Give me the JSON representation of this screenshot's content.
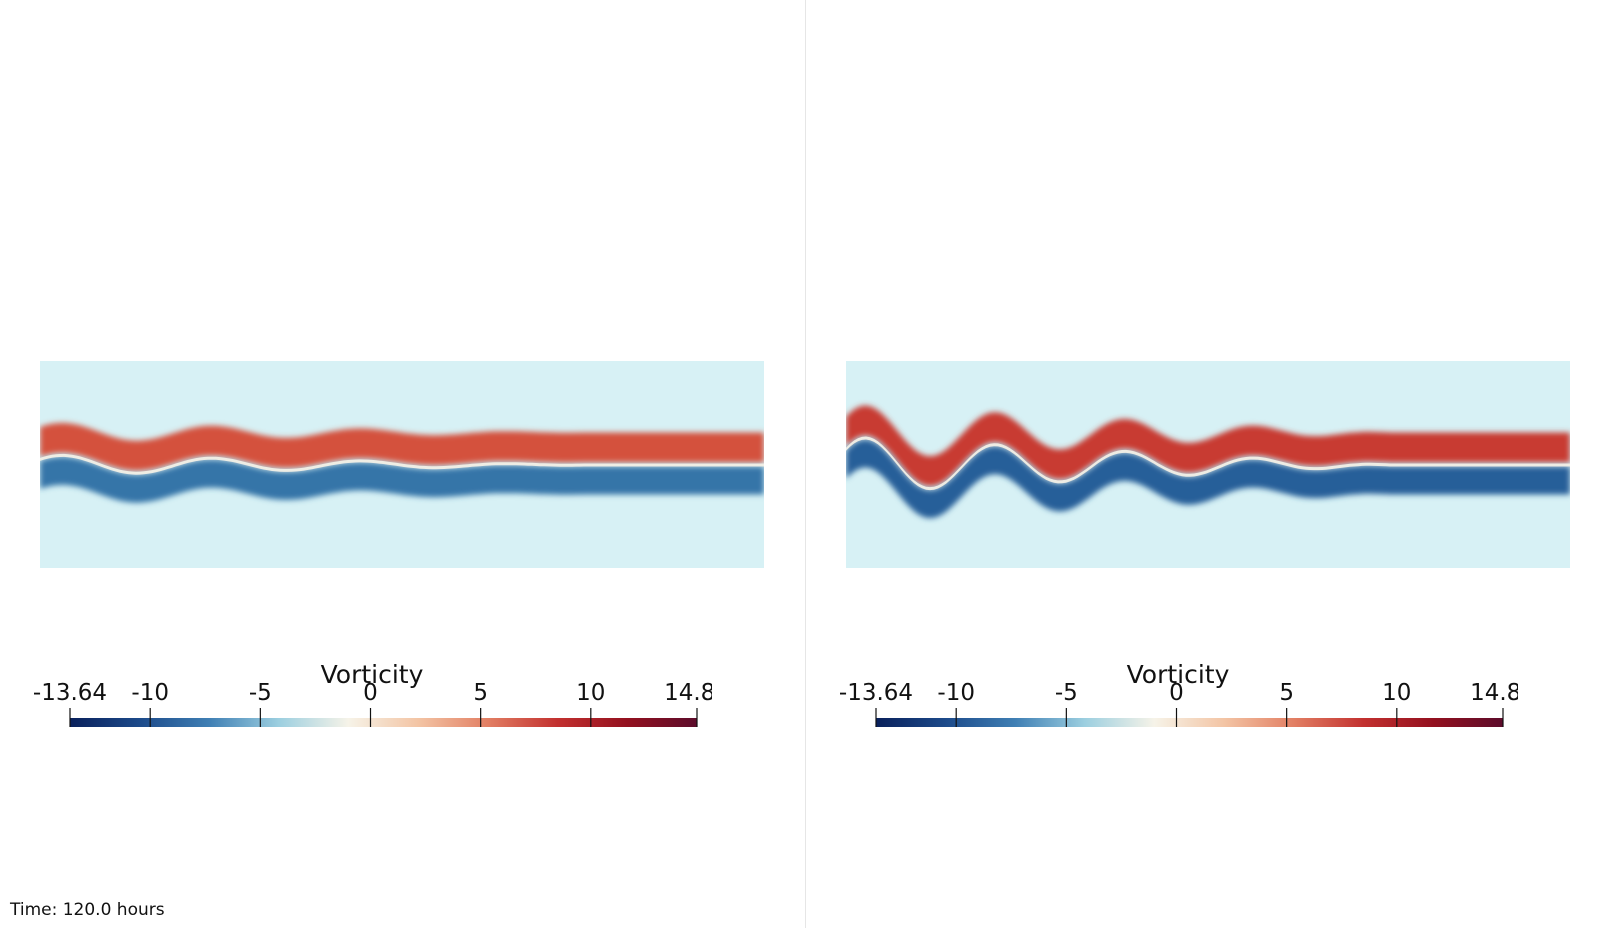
{
  "views": [
    {
      "id": "left",
      "colorbar": {
        "title": "Vorticity",
        "min": -13.64,
        "max": 14.82,
        "ticks": [
          "-13.64",
          "-10",
          "-5",
          "0",
          "5",
          "10",
          "14.82"
        ],
        "tick_values": [
          -13.64,
          -10,
          -5,
          0,
          5,
          10,
          14.82
        ],
        "colormap_stops": [
          "#09205b",
          "#1c4a8a",
          "#3f7fb4",
          "#9ccfe0",
          "#f6f3e8",
          "#f3c4a4",
          "#e27e63",
          "#c2302f",
          "#93101f",
          "#5c0c2b"
        ]
      },
      "field": {
        "background": "#d7f1f5",
        "positive_color": "#d4513d",
        "negative_color": "#3474a8",
        "amplitude": 10,
        "wavelength": 150
      }
    },
    {
      "id": "right",
      "colorbar": {
        "title": "Vorticity",
        "min": -13.64,
        "max": 14.82,
        "ticks": [
          "-13.64",
          "-10",
          "-5",
          "0",
          "5",
          "10",
          "14.82"
        ],
        "tick_values": [
          -13.64,
          -10,
          -5,
          0,
          5,
          10,
          14.82
        ],
        "colormap_stops": [
          "#09205b",
          "#1c4a8a",
          "#3f7fb4",
          "#9ccfe0",
          "#f6f3e8",
          "#f3c4a4",
          "#e27e63",
          "#c2302f",
          "#93101f",
          "#5c0c2b"
        ]
      },
      "field": {
        "background": "#d7f1f5",
        "positive_color": "#c83a30",
        "negative_color": "#275e99",
        "amplitude": 28,
        "wavelength": 130
      }
    }
  ],
  "time_label": "Time: 120.0 hours"
}
